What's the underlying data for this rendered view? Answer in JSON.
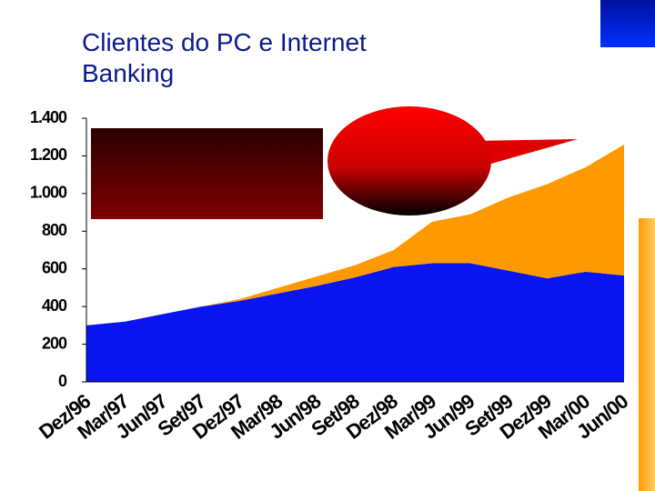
{
  "chart_data": {
    "type": "stacked-area",
    "title": "Clientes do PC e Internet Banking",
    "categories": [
      "Dez/96",
      "Mar/97",
      "Jun/97",
      "Set/97",
      "Dez/97",
      "Mar/98",
      "Jun/98",
      "Set/98",
      "Dez/98",
      "Mar/99",
      "Jun/99",
      "Set/99",
      "Dez/99",
      "Mar/00",
      "Jun/00"
    ],
    "series": [
      {
        "color": "#0a14f0",
        "values": [
          300,
          320,
          360,
          400,
          430,
          470,
          510,
          555,
          610,
          630,
          630,
          590,
          550,
          585,
          565
        ]
      },
      {
        "color": "#ff9900",
        "values": [
          0,
          0,
          0,
          0,
          10,
          30,
          50,
          65,
          90,
          220,
          260,
          390,
          500,
          555,
          695
        ]
      }
    ],
    "ylim": [
      0,
      1400
    ],
    "yticks": [
      0,
      200,
      400,
      600,
      800,
      {
        "value": 1000,
        "label": "1.000"
      },
      {
        "value": 1200,
        "label": "1.200"
      },
      {
        "value": 1400,
        "label": "1.400"
      }
    ]
  }
}
